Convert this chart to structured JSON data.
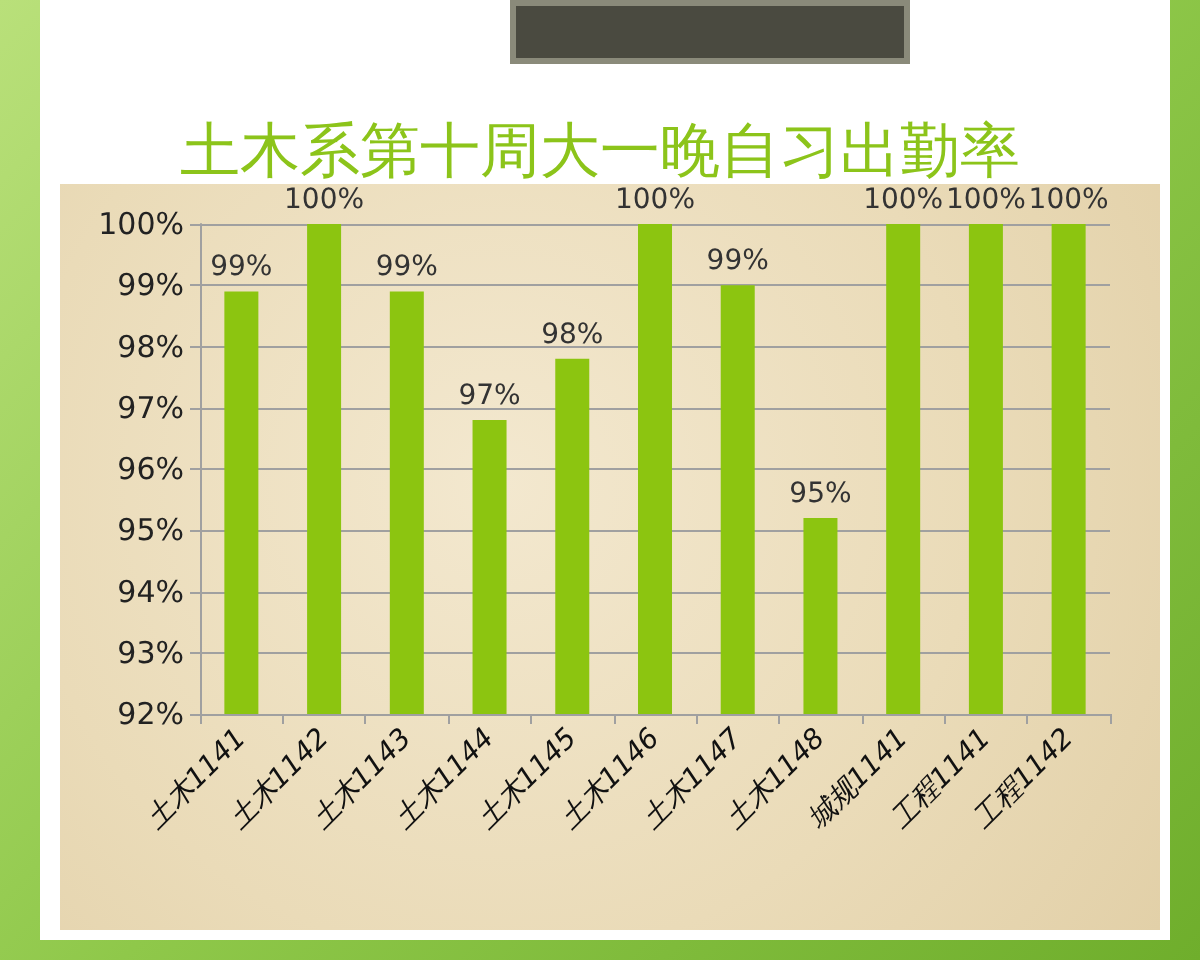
{
  "chart_data": {
    "type": "bar",
    "title": "土木系第十周大一晚自习出勤率",
    "categories": [
      "土木1141",
      "土木1142",
      "土木1143",
      "土木1144",
      "土木1145",
      "土木1146",
      "土木1147",
      "土木1148",
      "城规1141",
      "工程1141",
      "工程1142"
    ],
    "values": [
      98.9,
      100,
      98.9,
      96.8,
      97.8,
      100,
      99.0,
      95.2,
      100,
      100,
      100
    ],
    "value_labels": [
      "99%",
      "100%",
      "99%",
      "97%",
      "98%",
      "100%",
      "99%",
      "95%",
      "100%",
      "100%",
      "100%"
    ],
    "color": "#8cc510",
    "ylim": [
      92,
      100
    ],
    "yticks": [
      {
        "value": 92,
        "label": "92%"
      },
      {
        "value": 93,
        "label": "93%"
      },
      {
        "value": 94,
        "label": "94%"
      },
      {
        "value": 95,
        "label": "95%"
      },
      {
        "value": 96,
        "label": "96%"
      },
      {
        "value": 97,
        "label": "97%"
      },
      {
        "value": 98,
        "label": "98%"
      },
      {
        "value": 99,
        "label": "99%"
      },
      {
        "value": 100,
        "label": "100%"
      }
    ],
    "grid": "y"
  }
}
